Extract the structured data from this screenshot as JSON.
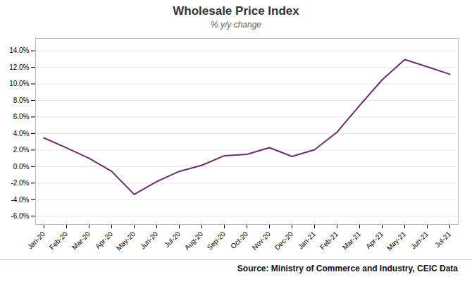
{
  "chart_data": {
    "type": "line",
    "title": "Wholesale Price Index",
    "subtitle": "% y/y change",
    "source": "Source: Ministry of Commerce and Industry, CEIC Data",
    "categories": [
      "Jan-20",
      "Feb-20",
      "Mar-20",
      "Apr-20",
      "May-20",
      "Jun-20",
      "Jul-20",
      "Aug-20",
      "Sep-20",
      "Oct-20",
      "Nov-20",
      "Dec-20",
      "Jan-21",
      "Feb-21",
      "Mar-21",
      "Apr-21",
      "May-21",
      "Jun-21",
      "Jul-21"
    ],
    "values": [
      3.46,
      2.26,
      1.0,
      -0.58,
      -3.37,
      -1.81,
      -0.58,
      0.16,
      1.32,
      1.48,
      2.29,
      1.22,
      2.03,
      4.17,
      7.39,
      10.49,
      12.94,
      12.07,
      11.16
    ],
    "color": "#6B2D6B",
    "ylim": [
      -7.0,
      15.5
    ],
    "yticks": [
      {
        "value": -6.0,
        "label": "-6.0%"
      },
      {
        "value": -4.0,
        "label": "-4.0%"
      },
      {
        "value": -2.0,
        "label": "-2.0%"
      },
      {
        "value": 0.0,
        "label": "0.0%"
      },
      {
        "value": 2.0,
        "label": "2.0%"
      },
      {
        "value": 4.0,
        "label": "4.0%"
      },
      {
        "value": 6.0,
        "label": "6.0%"
      },
      {
        "value": 8.0,
        "label": "8.0%"
      },
      {
        "value": 10.0,
        "label": "10.0%"
      },
      {
        "value": 12.0,
        "label": "12.0%"
      },
      {
        "value": 14.0,
        "label": "14.0%"
      }
    ],
    "grid": true
  }
}
